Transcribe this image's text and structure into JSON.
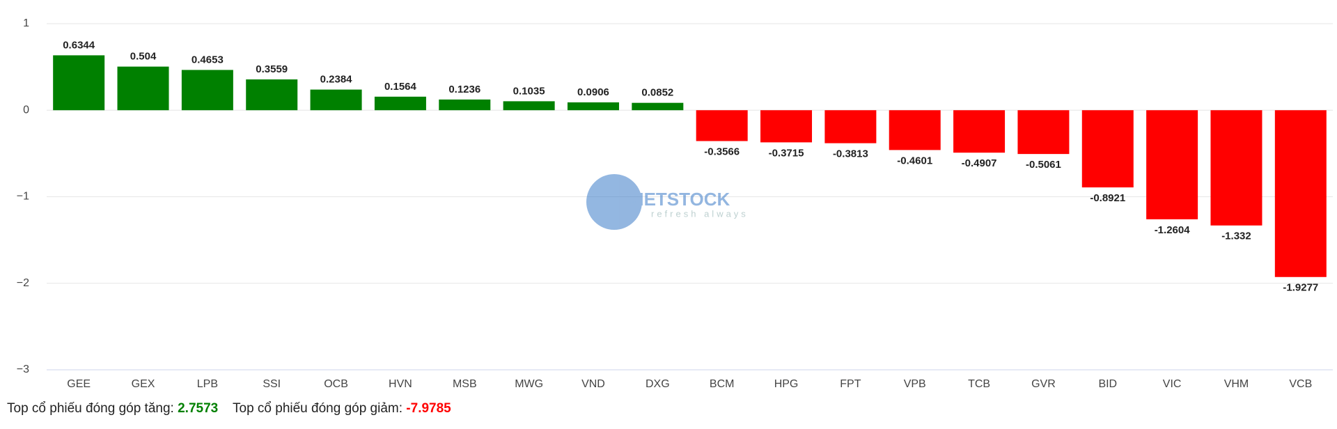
{
  "chart_data": {
    "type": "bar",
    "categories": [
      "GEE",
      "GEX",
      "LPB",
      "SSI",
      "OCB",
      "HVN",
      "MSB",
      "MWG",
      "VND",
      "DXG",
      "BCM",
      "HPG",
      "FPT",
      "VPB",
      "TCB",
      "GVR",
      "BID",
      "VIC",
      "VHM",
      "VCB"
    ],
    "values": [
      0.6344,
      0.504,
      0.4653,
      0.3559,
      0.2384,
      0.1564,
      0.1236,
      0.1035,
      0.0906,
      0.0852,
      -0.3566,
      -0.3715,
      -0.3813,
      -0.4601,
      -0.4907,
      -0.5061,
      -0.8921,
      -1.2604,
      -1.332,
      -1.9277
    ],
    "positive_color": "#008000",
    "negative_color": "#ff0000",
    "ylim": [
      -3,
      1
    ],
    "yticks": [
      {
        "value": -3,
        "label": "−3"
      },
      {
        "value": -2,
        "label": "−2"
      },
      {
        "value": -1,
        "label": "−1"
      },
      0,
      1
    ],
    "grid": true,
    "watermark": {
      "text": "VIETSTOCK",
      "tagline": "refresh always"
    },
    "summary": {
      "up_label": "Top cổ phiếu đóng góp tăng:",
      "up_value": "2.7573",
      "down_label": "Top cổ phiếu đóng góp giảm:",
      "down_value": "-7.9785"
    }
  }
}
